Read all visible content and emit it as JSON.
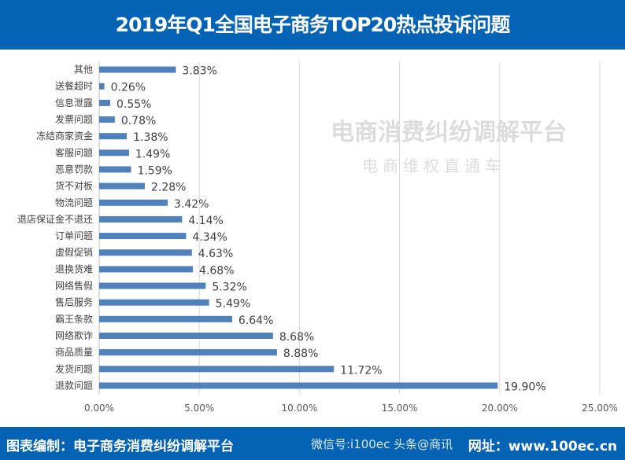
{
  "title": "2019年Q1全国电子商务TOP20热点投诉问题",
  "footer": {
    "left": "图表编制：电子商务消费纠纷调解平台",
    "right": "网址：www.100ec.cn",
    "overlay": "微信号:i100ec 头条@商讯"
  },
  "watermark": {
    "line1": "电商消费纠纷调解平台",
    "line2": "电商维权直通车"
  },
  "chart_data": {
    "type": "bar",
    "orientation": "horizontal",
    "categories": [
      "其他",
      "送餐超时",
      "信息泄露",
      "发票问题",
      "冻结商家资金",
      "客服问题",
      "恶意罚款",
      "货不对板",
      "物流问题",
      "退店保证金不退还",
      "订单问题",
      "虚假促销",
      "退换货难",
      "网络售假",
      "售后服务",
      "霸王条款",
      "网络欺诈",
      "商品质量",
      "发货问题",
      "退款问题"
    ],
    "values": [
      3.83,
      0.26,
      0.55,
      0.78,
      1.38,
      1.49,
      1.59,
      2.28,
      3.42,
      4.14,
      4.34,
      4.63,
      4.68,
      5.32,
      5.49,
      6.64,
      8.68,
      8.88,
      11.72,
      19.9
    ],
    "data_labels": [
      "3.83%",
      "0.26%",
      "0.55%",
      "0.78%",
      "1.38%",
      "1.49%",
      "1.59%",
      "2.28%",
      "3.42%",
      "4.14%",
      "4.34%",
      "4.63%",
      "4.68%",
      "5.32%",
      "5.49%",
      "6.64%",
      "8.68%",
      "8.88%",
      "11.72%",
      "19.90%"
    ],
    "xlim": [
      0,
      25
    ],
    "xticks": [
      "0.00%",
      "5.00%",
      "10.00%",
      "15.00%",
      "20.00%",
      "25.00%"
    ],
    "grid": true,
    "bar_color": "#4f81bd",
    "legend": "none"
  }
}
